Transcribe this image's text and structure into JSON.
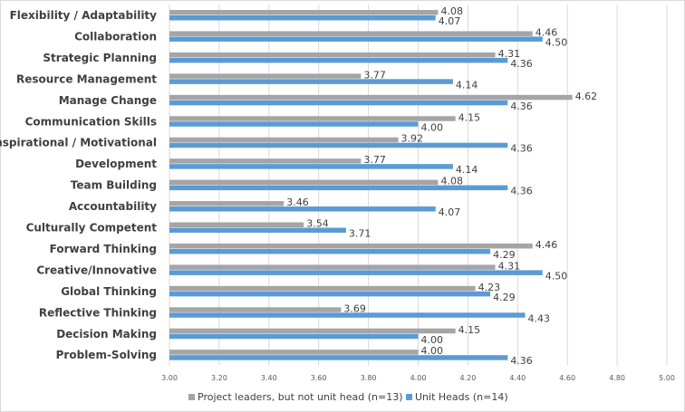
{
  "chart_data": {
    "type": "bar",
    "orientation": "horizontal",
    "categories": [
      "Flexibility / Adaptability",
      "Collaboration",
      "Strategic Planning",
      "Resource Management",
      "Manage Change",
      "Communication Skills",
      "Inspirational / Motivational",
      "Development",
      "Team Building",
      "Accountability",
      "Culturally Competent",
      "Forward Thinking",
      "Creative/Innovative",
      "Global Thinking",
      "Reflective Thinking",
      "Decision Making",
      "Problem-Solving"
    ],
    "series": [
      {
        "name": "Project leaders, but not unit head (n=13)",
        "color": "#a5a5a5",
        "values": [
          4.08,
          4.46,
          4.31,
          3.77,
          4.62,
          4.15,
          3.92,
          3.77,
          4.08,
          3.46,
          3.54,
          4.46,
          4.31,
          4.23,
          3.69,
          4.15,
          4.0
        ]
      },
      {
        "name": "Unit Heads (n=14)",
        "color": "#5b9bd5",
        "values": [
          4.07,
          4.5,
          4.36,
          4.14,
          4.36,
          4.0,
          4.36,
          4.14,
          4.36,
          4.07,
          3.71,
          4.29,
          4.5,
          4.29,
          4.43,
          4.0,
          4.36
        ]
      }
    ],
    "xlim": [
      3.0,
      5.0
    ],
    "xticks": [
      "3.00",
      "3.20",
      "3.40",
      "3.60",
      "3.80",
      "4.00",
      "4.20",
      "4.40",
      "4.60",
      "4.80",
      "5.00"
    ],
    "grid": true,
    "legend": "bottom",
    "title": "",
    "xlabel": "",
    "ylabel": ""
  }
}
